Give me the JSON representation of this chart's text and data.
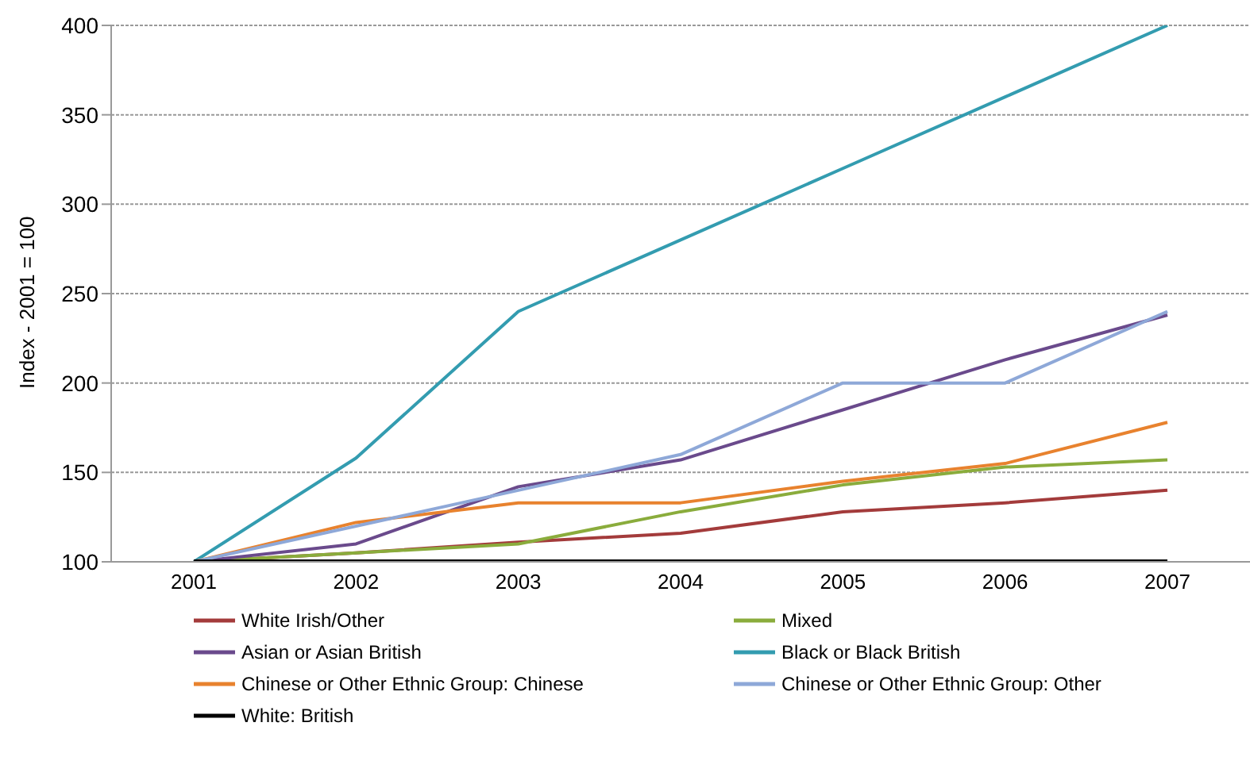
{
  "chart_data": {
    "type": "line",
    "ylabel": "Index - 2001 = 100",
    "categories": [
      "2001",
      "2002",
      "2003",
      "2004",
      "2005",
      "2006",
      "2007"
    ],
    "series": [
      {
        "name": "White Irish/Other",
        "color": "#a33b3b",
        "values": [
          100,
          105,
          111,
          116,
          128,
          133,
          140
        ]
      },
      {
        "name": "Mixed",
        "color": "#8aac3c",
        "values": [
          100,
          105,
          110,
          128,
          143,
          153,
          157
        ]
      },
      {
        "name": "Asian or Asian British",
        "color": "#6a4a8c",
        "values": [
          100,
          110,
          142,
          157,
          185,
          213,
          238
        ]
      },
      {
        "name": "Black or Black British",
        "color": "#339cb0",
        "values": [
          100,
          158,
          240,
          280,
          320,
          360,
          400
        ]
      },
      {
        "name": "Chinese or Other Ethnic Group: Chinese",
        "color": "#e8822e",
        "values": [
          100,
          122,
          133,
          133,
          145,
          155,
          178
        ]
      },
      {
        "name": "Chinese or Other Ethnic Group: Other",
        "color": "#8ea8d8",
        "values": [
          100,
          120,
          140,
          160,
          200,
          200,
          240
        ]
      },
      {
        "name": "White: British",
        "color": "#000000",
        "values": [
          100,
          100,
          100,
          100,
          100,
          100,
          100
        ]
      }
    ],
    "ylim": [
      100,
      400
    ],
    "yticks": [
      100,
      150,
      200,
      250,
      300,
      350,
      400
    ],
    "grid": "y",
    "legend": "bottom",
    "marker": "none",
    "line_style": "solid"
  }
}
